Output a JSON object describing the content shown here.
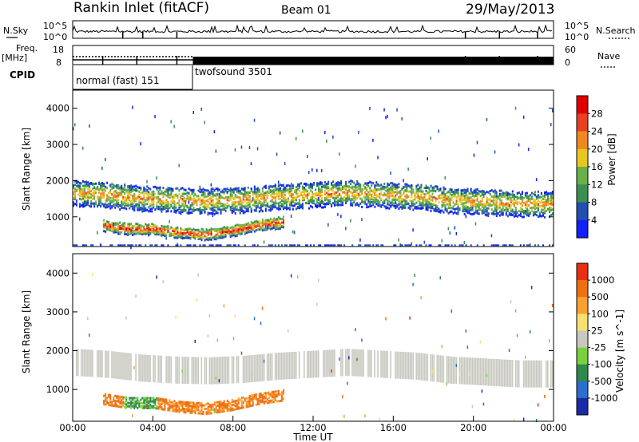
{
  "header": {
    "title": "Rankin Inlet (fitACF)",
    "beam": "Beam 01",
    "date": "29/May/2013"
  },
  "panels": {
    "nsky_label": "N.Sky",
    "nsearch_label": "N.Search",
    "freq_label_1": "Freq.",
    "freq_label_2": "[MHz]",
    "nave_label": "Nave",
    "cpid_label": "CPID",
    "nsky_ticks": [
      "10^5",
      "10^0"
    ],
    "nsearch_ticks": [
      "10^5",
      "10^0"
    ],
    "freq_ticks": [
      "18",
      "8"
    ],
    "nave_ticks": [
      "60",
      "0"
    ],
    "cpid_segments": [
      {
        "label": "normal (fast) 151",
        "start_hour": 0,
        "end_hour": 6
      },
      {
        "label": "twofsound 3501",
        "start_hour": 6,
        "end_hour": 24
      }
    ],
    "freq_level_mhz": {
      "normal": 10.5,
      "twofsound": 10.5
    },
    "nave_level": {
      "normal": 18,
      "twofsound": 18
    }
  },
  "chart_data": [
    {
      "type": "heatmap",
      "name": "power",
      "ylabel": "Slant Range [km]",
      "xlabel": "",
      "xlim_hours": [
        0,
        24
      ],
      "ylim_km": [
        180,
        4500
      ],
      "yticks": [
        1000,
        2000,
        3000,
        4000
      ],
      "colorbar": {
        "label": "Power [dB]",
        "ticks": [
          "4",
          "8",
          "12",
          "16",
          "20",
          "24",
          "28"
        ],
        "colors": [
          "#1020ff",
          "#2050b0",
          "#3a9050",
          "#6ab048",
          "#e8c820",
          "#f08820",
          "#e84020",
          "#e00000"
        ]
      },
      "bands": [
        {
          "kind": "main_band",
          "hours": [
            0,
            24
          ],
          "center_km": [
            1700,
            1650,
            1550,
            1500,
            1480,
            1520,
            1600,
            1650,
            1700,
            1650,
            1600,
            1500,
            1450,
            1400,
            1400
          ],
          "halfwidth_km": 350,
          "peak_power_db": 22
        },
        {
          "kind": "lower_band",
          "hours": [
            1.5,
            10.5
          ],
          "center_km": [
            800,
            700,
            700,
            600,
            550,
            650,
            800,
            900
          ],
          "halfwidth_km": 150,
          "peak_power_db": 26
        }
      ]
    },
    {
      "type": "heatmap",
      "name": "velocity",
      "ylabel": "Slant Range [km]",
      "xlabel": "Time UT",
      "xlim_hours": [
        0,
        24
      ],
      "ylim_km": [
        180,
        4500
      ],
      "yticks": [
        1000,
        2000,
        3000,
        4000
      ],
      "xticks": [
        "00:00",
        "04:00",
        "08:00",
        "12:00",
        "16:00",
        "20:00",
        "00:00"
      ],
      "colorbar": {
        "label": "Velocity [m s^-1]",
        "ticks": [
          "1000",
          "500",
          "100",
          "25",
          "-25",
          "-100",
          "-500",
          "-1000"
        ],
        "colors": [
          "#1a2aa8",
          "#2a6ed0",
          "#2e8a4a",
          "#7ad040",
          "#c8c8c0",
          "#f8e070",
          "#f8a030",
          "#f07010",
          "#e83010"
        ]
      },
      "bands": [
        {
          "kind": "ground_scatter",
          "hours": [
            0,
            24
          ],
          "velocity_ms": 0,
          "color": "#c8c8c0"
        },
        {
          "kind": "lower_band",
          "hours": [
            1.5,
            10.5
          ],
          "velocity_ms": -150
        }
      ]
    }
  ]
}
